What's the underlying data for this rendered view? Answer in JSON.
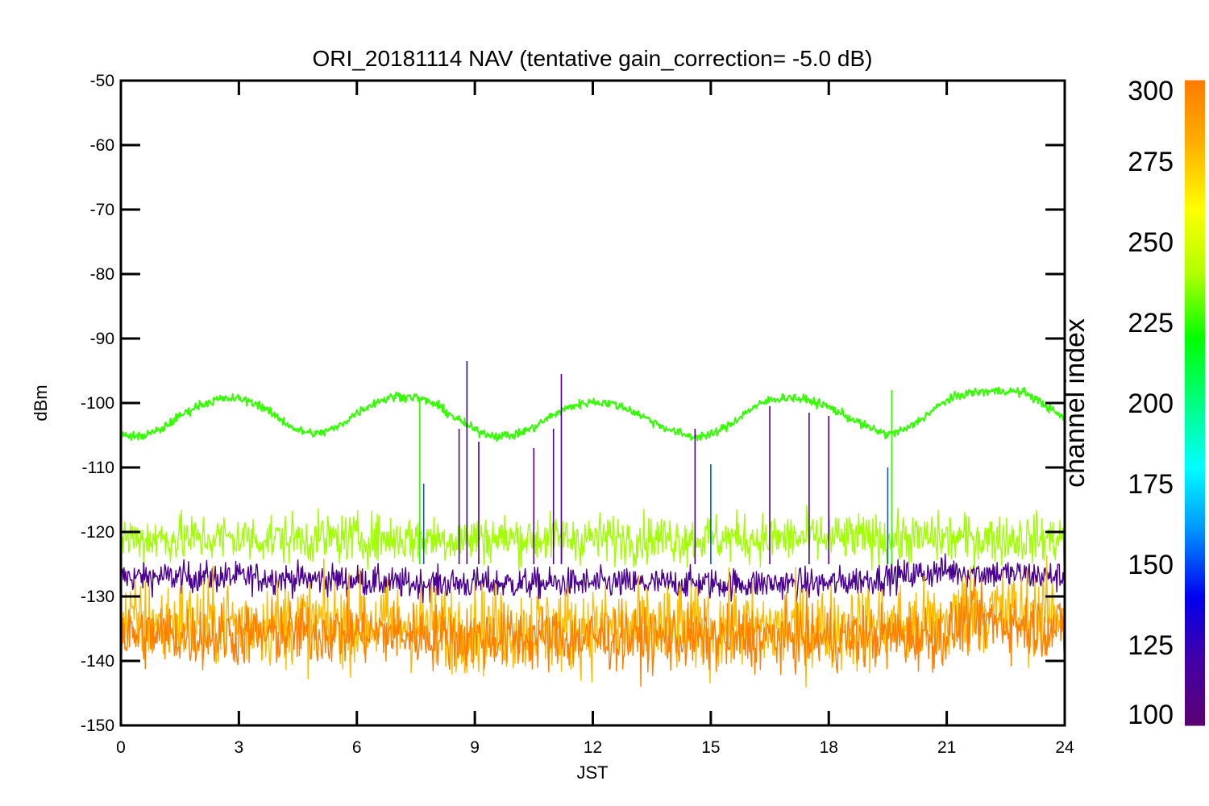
{
  "chart_data": {
    "type": "line",
    "title": "ORI_20181114 NAV (tentative gain_correction= -5.0 dB)",
    "xlabel": "JST",
    "ylabel": "dBm",
    "xlim": [
      0,
      24
    ],
    "ylim": [
      -150,
      -50
    ],
    "xticks": [
      "0",
      "3",
      "6",
      "9",
      "12",
      "15",
      "18",
      "21",
      "24"
    ],
    "yticks": [
      "-50",
      "-60",
      "-70",
      "-80",
      "-90",
      "-100",
      "-110",
      "-120",
      "-130",
      "-140",
      "-150"
    ],
    "grid": false,
    "colorbar": {
      "label": "channel index",
      "range": [
        100,
        300
      ],
      "ticks": [
        "300",
        "275",
        "250",
        "225",
        "200",
        "175",
        "150",
        "125",
        "100"
      ],
      "colormap": [
        "#5a0072",
        "#4400a6",
        "#0000f0",
        "#0090ff",
        "#00ffff",
        "#00ff80",
        "#00ff00",
        "#b0ff00",
        "#ffff00",
        "#ffb000",
        "#ff7a00"
      ]
    },
    "series": [
      {
        "channel_index": 230,
        "color": "#33ff00",
        "x": [
          0,
          0.5,
          1,
          1.5,
          2,
          2.5,
          3,
          3.5,
          4,
          4.5,
          5,
          5.5,
          6,
          6.5,
          7,
          7.5,
          8,
          8.5,
          9,
          9.5,
          10,
          10.5,
          11,
          11.5,
          12,
          12.5,
          13,
          13.5,
          14,
          14.5,
          15,
          15.5,
          16,
          16.5,
          17,
          17.5,
          18,
          18.5,
          19,
          19.5,
          20,
          20.5,
          21,
          21.5,
          22,
          22.5,
          23,
          23.5,
          24
        ],
        "values": [
          -105,
          -105.2,
          -104.2,
          -102,
          -100.3,
          -99.4,
          -99.3,
          -100.2,
          -102.3,
          -104.3,
          -104.8,
          -103.8,
          -101.5,
          -99.8,
          -98.9,
          -99.1,
          -100.2,
          -102.3,
          -104.2,
          -105.1,
          -105,
          -103.8,
          -101.8,
          -100.4,
          -99.8,
          -100.1,
          -101.2,
          -102.8,
          -104.3,
          -105.2,
          -105,
          -103.3,
          -101,
          -99.5,
          -99.1,
          -99.6,
          -100.6,
          -102.2,
          -103.8,
          -104.9,
          -104,
          -101.8,
          -99.6,
          -98.5,
          -98.2,
          -98.1,
          -98.4,
          -100.3,
          -102.5
        ]
      },
      {
        "channel_index": 258,
        "color": "#a0ff00",
        "x": [
          0,
          3,
          6,
          9,
          12,
          15,
          18,
          21,
          24
        ],
        "values": [
          -121,
          -121,
          -121,
          -121,
          -121,
          -121,
          -121,
          -121,
          -121
        ]
      },
      {
        "channel_index": 285,
        "color": "#ffbb00",
        "x": [
          0,
          3,
          6,
          9,
          12,
          15,
          18,
          21,
          21.5,
          24
        ],
        "values": [
          -134,
          -134,
          -134,
          -135,
          -135,
          -135,
          -135,
          -134,
          -132,
          -133
        ]
      },
      {
        "channel_index": 300,
        "color": "#ff8000",
        "x": [
          0,
          3,
          6,
          9,
          12,
          15,
          18,
          21,
          21.5,
          24
        ],
        "values": [
          -136,
          -136,
          -135.5,
          -136.5,
          -136.5,
          -136.5,
          -136.5,
          -136,
          -133.5,
          -135
        ]
      },
      {
        "channel_index": 105,
        "color": "#4a0090",
        "x": [
          0,
          3,
          6,
          7,
          9,
          12,
          15,
          18,
          21,
          24
        ],
        "values": [
          -127,
          -127,
          -127.5,
          -128,
          -128,
          -128,
          -128,
          -128,
          -126,
          -127
        ]
      }
    ],
    "spikes": [
      {
        "x": 8.8,
        "value": -93.5,
        "color": "#4a0090"
      },
      {
        "x": 11.2,
        "value": -95.5,
        "color": "#4a0090"
      },
      {
        "x": 8.6,
        "value": -104,
        "color": "#4a0090"
      },
      {
        "x": 9.1,
        "value": -106,
        "color": "#4a0090"
      },
      {
        "x": 10.5,
        "value": -107,
        "color": "#4a0090"
      },
      {
        "x": 11,
        "value": -104,
        "color": "#4a0090"
      },
      {
        "x": 14.6,
        "value": -104,
        "color": "#4a0090"
      },
      {
        "x": 16.5,
        "value": -100.5,
        "color": "#4a0090"
      },
      {
        "x": 17.5,
        "value": -101.5,
        "color": "#4a0090"
      },
      {
        "x": 18,
        "value": -102,
        "color": "#4a0090"
      },
      {
        "x": 7.7,
        "value": -112.5,
        "color": "#0050ff"
      },
      {
        "x": 19.5,
        "value": -110,
        "color": "#0050ff"
      },
      {
        "x": 15,
        "value": -109.5,
        "color": "#0050ff"
      },
      {
        "x": 19.6,
        "value": -98,
        "color": "#33ff00"
      },
      {
        "x": 7.6,
        "value": -99.5,
        "color": "#33ff00"
      }
    ]
  }
}
